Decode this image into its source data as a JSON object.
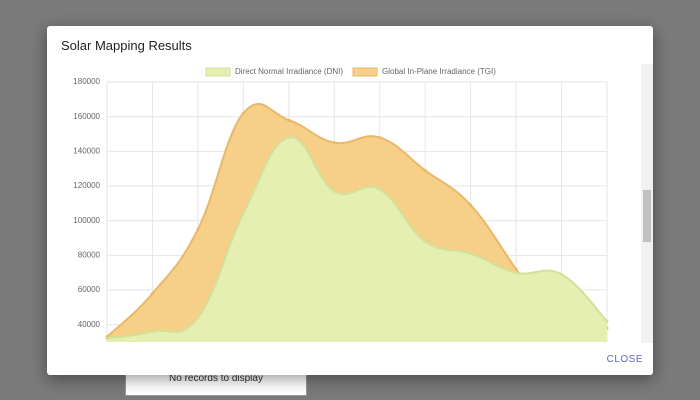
{
  "dialog": {
    "title": "Solar Mapping Results",
    "close": "CLOSE"
  },
  "background": {
    "empty_text": "No records to display"
  },
  "chart_data": {
    "type": "area",
    "categories": [
      null,
      null,
      null,
      null,
      null,
      null,
      null,
      null,
      null,
      null,
      null,
      null
    ],
    "series": [
      {
        "name": "Direct Normal Irradiance (DNI)",
        "color": "#e6efb2",
        "values": [
          32000,
          36000,
          44000,
          104000,
          148000,
          117000,
          118000,
          88000,
          81000,
          70000,
          69000,
          42000
        ]
      },
      {
        "name": "Global In-Plane Irradiance (TGI)",
        "color": "#f6cf88",
        "values": [
          33000,
          58000,
          95000,
          162000,
          158000,
          145000,
          148000,
          129000,
          109000,
          72000,
          35000,
          38000
        ]
      }
    ],
    "ylim": [
      30000,
      180000
    ],
    "yticks": [
      40000,
      60000,
      80000,
      100000,
      120000,
      140000,
      160000,
      180000
    ],
    "grid": true
  }
}
